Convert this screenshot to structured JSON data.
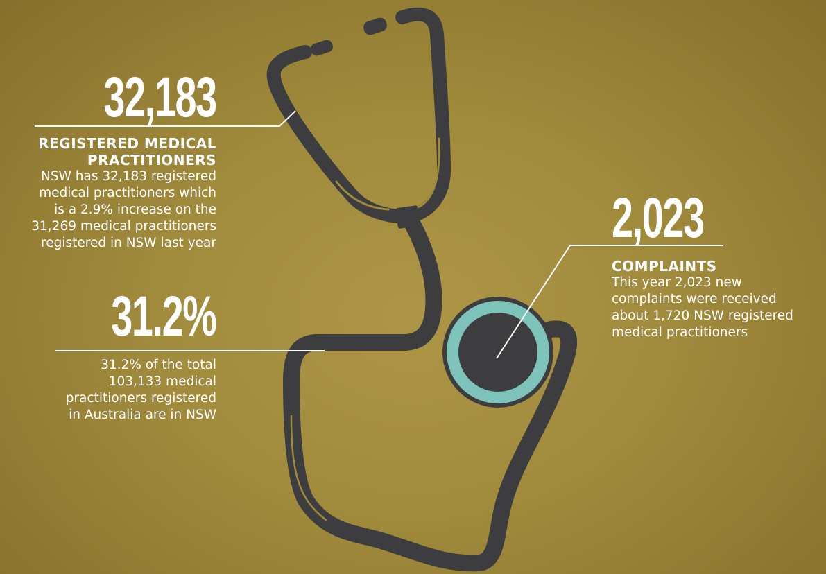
{
  "stats": [
    {
      "value": "32,183",
      "heading": [
        "REGISTERED MEDICAL",
        "PRACTITIONERS"
      ],
      "text": [
        "NSW has 32,183 registered",
        "medical practitioners which",
        "is a 2.9% increase on the",
        "31,269 medical practitioners",
        "registered in NSW last year"
      ]
    },
    {
      "value": "31.2%",
      "heading": [],
      "text": [
        "31.2% of the total",
        "103,133 medical",
        "practitioners registered",
        "in Australia are in NSW"
      ]
    },
    {
      "value": "2,023",
      "heading": [
        "COMPLAINTS"
      ],
      "text": [
        "This year 2,023 new",
        "complaints were received",
        "about 1,720 NSW registered",
        "medical practitioners"
      ]
    }
  ]
}
